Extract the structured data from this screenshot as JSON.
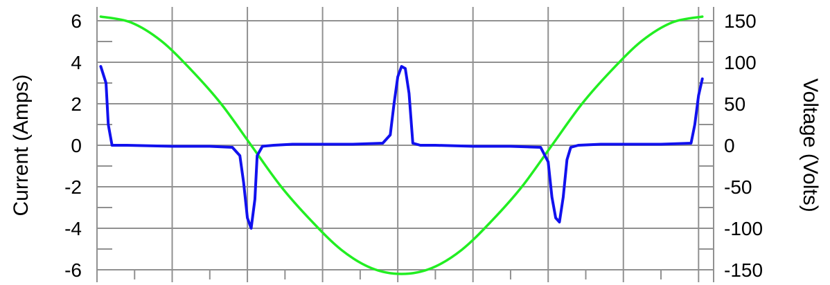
{
  "chart_data": {
    "type": "line",
    "title": "",
    "grid": true,
    "left_axis": {
      "label": "Current (Amps)",
      "range": [
        -6,
        6
      ],
      "major_ticks": [
        6,
        4,
        2,
        0,
        -2,
        -4,
        -6
      ],
      "minor_ticks": [
        5,
        3,
        1,
        -1,
        -3,
        -5
      ]
    },
    "right_axis": {
      "label": "Voltage (Volts)",
      "range": [
        -150,
        150
      ],
      "major_ticks": [
        150,
        100,
        50,
        0,
        -50,
        -100,
        -150
      ],
      "minor_ticks": [
        125,
        75,
        25,
        -25,
        -75,
        -125
      ]
    },
    "x_axis": {
      "range": [
        0,
        8.2
      ],
      "gridlines": [
        0,
        1,
        2,
        3,
        4,
        5,
        6,
        7,
        8
      ],
      "minor_ticks": [
        0.5,
        1.5,
        2.5,
        3.5,
        4.5,
        5.5,
        6.5,
        7.5
      ]
    },
    "series": [
      {
        "id": "voltage",
        "axis": "right",
        "color": "#22ee22",
        "x": [
          0.05,
          0.45,
          0.85,
          1.25,
          1.65,
          2.05,
          2.45,
          2.85,
          3.25,
          3.65,
          4.05,
          4.45,
          4.85,
          5.25,
          5.65,
          6.05,
          6.45,
          6.85,
          7.25,
          7.65,
          8.05
        ],
        "y": [
          155,
          148,
          126,
          91,
          50,
          0,
          -50,
          -91,
          -126,
          -148,
          -155,
          -148,
          -126,
          -91,
          -50,
          0,
          50,
          91,
          126,
          148,
          155
        ]
      },
      {
        "id": "current",
        "axis": "left",
        "color": "#1111ee",
        "x": [
          0.05,
          0.12,
          0.15,
          0.2,
          0.4,
          1.0,
          1.5,
          1.8,
          1.9,
          1.95,
          2.0,
          2.05,
          2.1,
          2.13,
          2.2,
          2.35,
          2.6,
          3.0,
          3.4,
          3.8,
          3.9,
          3.95,
          4.0,
          4.05,
          4.1,
          4.15,
          4.2,
          4.3,
          4.5,
          5.0,
          5.5,
          5.9,
          6.0,
          6.05,
          6.1,
          6.15,
          6.2,
          6.25,
          6.3,
          6.4,
          6.7,
          7.1,
          7.5,
          7.9,
          7.95,
          8.0,
          8.05
        ],
        "y": [
          3.8,
          3.0,
          1.0,
          0.0,
          0.0,
          -0.05,
          -0.05,
          -0.1,
          -0.5,
          -1.8,
          -3.5,
          -4.0,
          -2.6,
          -0.5,
          -0.05,
          0.0,
          0.05,
          0.05,
          0.05,
          0.1,
          0.5,
          2.0,
          3.3,
          3.8,
          3.7,
          2.5,
          0.1,
          0.0,
          0.0,
          -0.05,
          -0.05,
          -0.1,
          -0.8,
          -2.5,
          -3.5,
          -3.7,
          -2.5,
          -0.7,
          -0.1,
          0.0,
          0.05,
          0.05,
          0.05,
          0.1,
          1.0,
          2.4,
          3.2
        ]
      }
    ]
  }
}
